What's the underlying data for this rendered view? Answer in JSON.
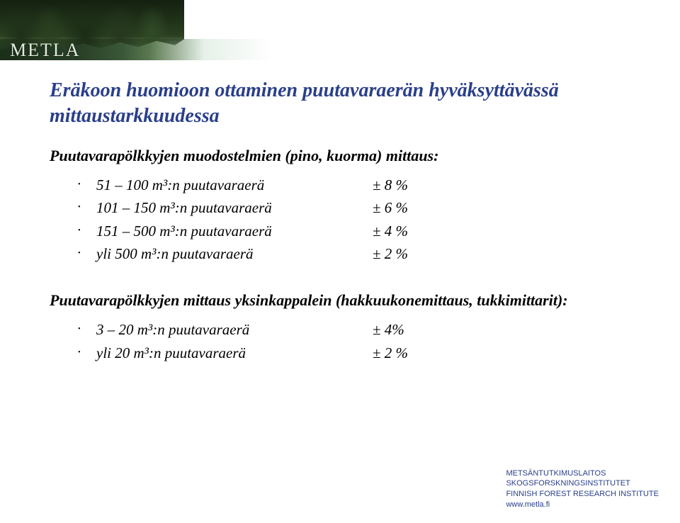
{
  "brand": {
    "logo_text": "METLA"
  },
  "colors": {
    "title_color": "#2a3f8a",
    "body_text": "#000000",
    "footer_text": "#2a3f8a",
    "background": "#ffffff"
  },
  "typography": {
    "title_fontsize_pt": 21,
    "heading_fontsize_pt": 17,
    "list_fontsize_pt": 16,
    "footer_fontsize_pt": 8,
    "italic": true,
    "font_family_body": "Comic Sans MS / handwritten italic",
    "font_family_footer": "Arial"
  },
  "title": "Eräkoon huomioon ottaminen puutavaraerän hyväksyttävässä mittaustarkkuudessa",
  "section1": {
    "heading": "Puutavarapölkkyjen muodostelmien (pino, kuorma) mittaus:",
    "rows": [
      {
        "range": "51 – 100 m³:n puutavaraerä",
        "value": "± 8 %"
      },
      {
        "range": "101 – 150 m³:n puutavaraerä",
        "value": "± 6 %"
      },
      {
        "range": "151 – 500 m³:n puutavaraerä",
        "value": "± 4 %"
      },
      {
        "range": "yli 500 m³:n puutavaraerä",
        "value": "± 2 %"
      }
    ]
  },
  "section2": {
    "heading": "Puutavarapölkkyjen mittaus yksinkappalein (hakkuukonemittaus, tukkimittarit):",
    "rows": [
      {
        "range": "3 – 20 m³:n puutavaraerä",
        "value": "± 4%"
      },
      {
        "range": "yli 20 m³:n puutavaraerä",
        "value": "± 2 %"
      }
    ]
  },
  "footer": {
    "line1": "METSÄNTUTKIMUSLAITOS",
    "line2": "SKOGSFORSKNINGSINSTITUTET",
    "line3": "FINNISH FOREST RESEARCH INSTITUTE",
    "line4": "www.metla.fi"
  }
}
